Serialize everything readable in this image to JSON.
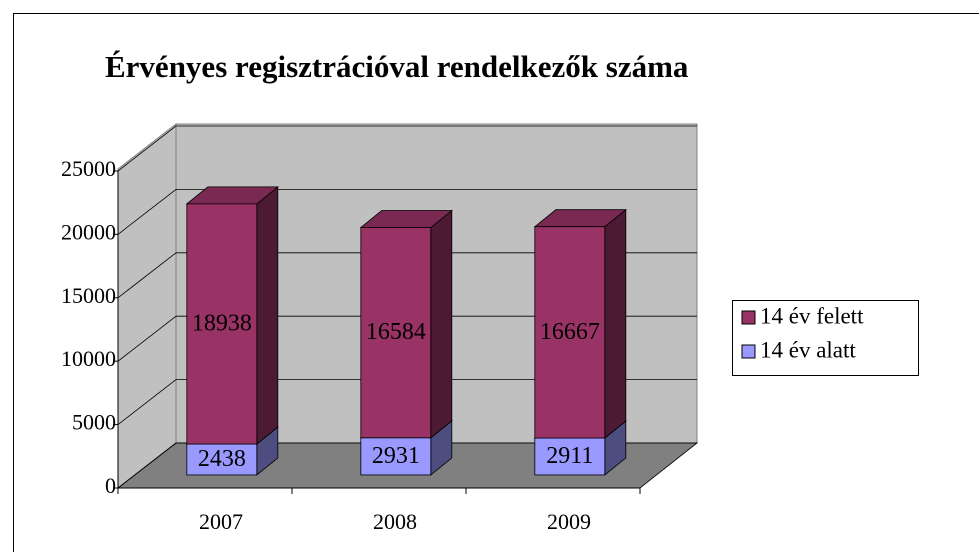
{
  "chart_data": {
    "type": "bar3d_stacked",
    "title": "Érvényes regisztrációval rendelkezők száma",
    "categories": [
      "2007",
      "2008",
      "2009"
    ],
    "series": [
      {
        "name": "14 év alatt",
        "color": "#9999ff",
        "values": [
          2438,
          2931,
          2911
        ]
      },
      {
        "name": "14 év felett",
        "color": "#993366",
        "values": [
          18938,
          16584,
          16667
        ]
      }
    ],
    "ylim": [
      0,
      25000
    ],
    "yticks": [
      0,
      5000,
      10000,
      15000,
      20000,
      25000
    ],
    "grid": true,
    "legend": "right"
  }
}
